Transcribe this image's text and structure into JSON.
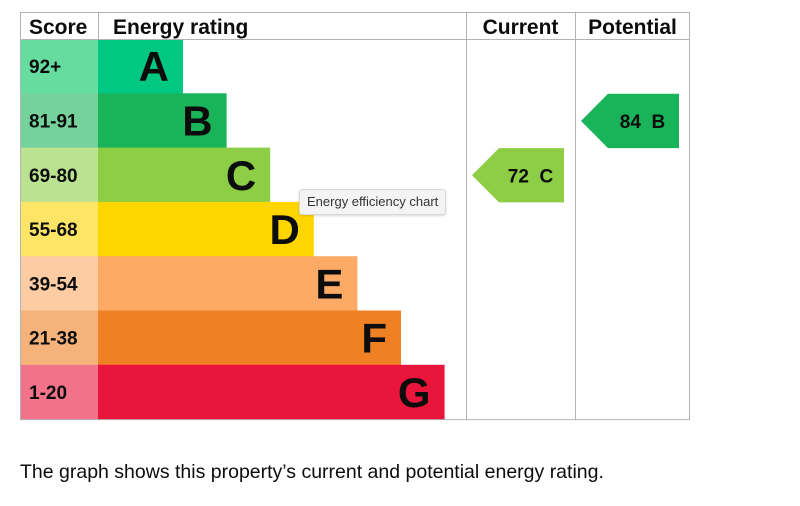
{
  "chart_data": {
    "type": "bar",
    "title": "",
    "headers": {
      "score": "Score",
      "rating": "Energy rating",
      "current": "Current",
      "potential": "Potential"
    },
    "bands": [
      {
        "letter": "A",
        "score": "92+",
        "color": "#00c781",
        "score_bg": "#66dd9f"
      },
      {
        "letter": "B",
        "score": "81-91",
        "color": "#19b459",
        "score_bg": "#75d29b"
      },
      {
        "letter": "C",
        "score": "69-80",
        "color": "#8dce46",
        "score_bg": "#bbe290"
      },
      {
        "letter": "D",
        "score": "55-68",
        "color": "#ffd500",
        "score_bg": "#ffe566"
      },
      {
        "letter": "E",
        "score": "39-54",
        "color": "#fcaa65",
        "score_bg": "#fdcca3"
      },
      {
        "letter": "F",
        "score": "21-38",
        "color": "#ef8023",
        "score_bg": "#f5b37b"
      },
      {
        "letter": "G",
        "score": "1-20",
        "color": "#e9153b",
        "score_bg": "#f27389"
      }
    ],
    "current": {
      "value": 72,
      "band": "C",
      "label": "72 C",
      "color": "#8dce46"
    },
    "potential": {
      "value": 84,
      "band": "B",
      "label": "84 B",
      "color": "#19b459"
    }
  },
  "tooltip": "Energy efficiency chart",
  "caption": "The graph shows this property’s current and potential energy rating."
}
